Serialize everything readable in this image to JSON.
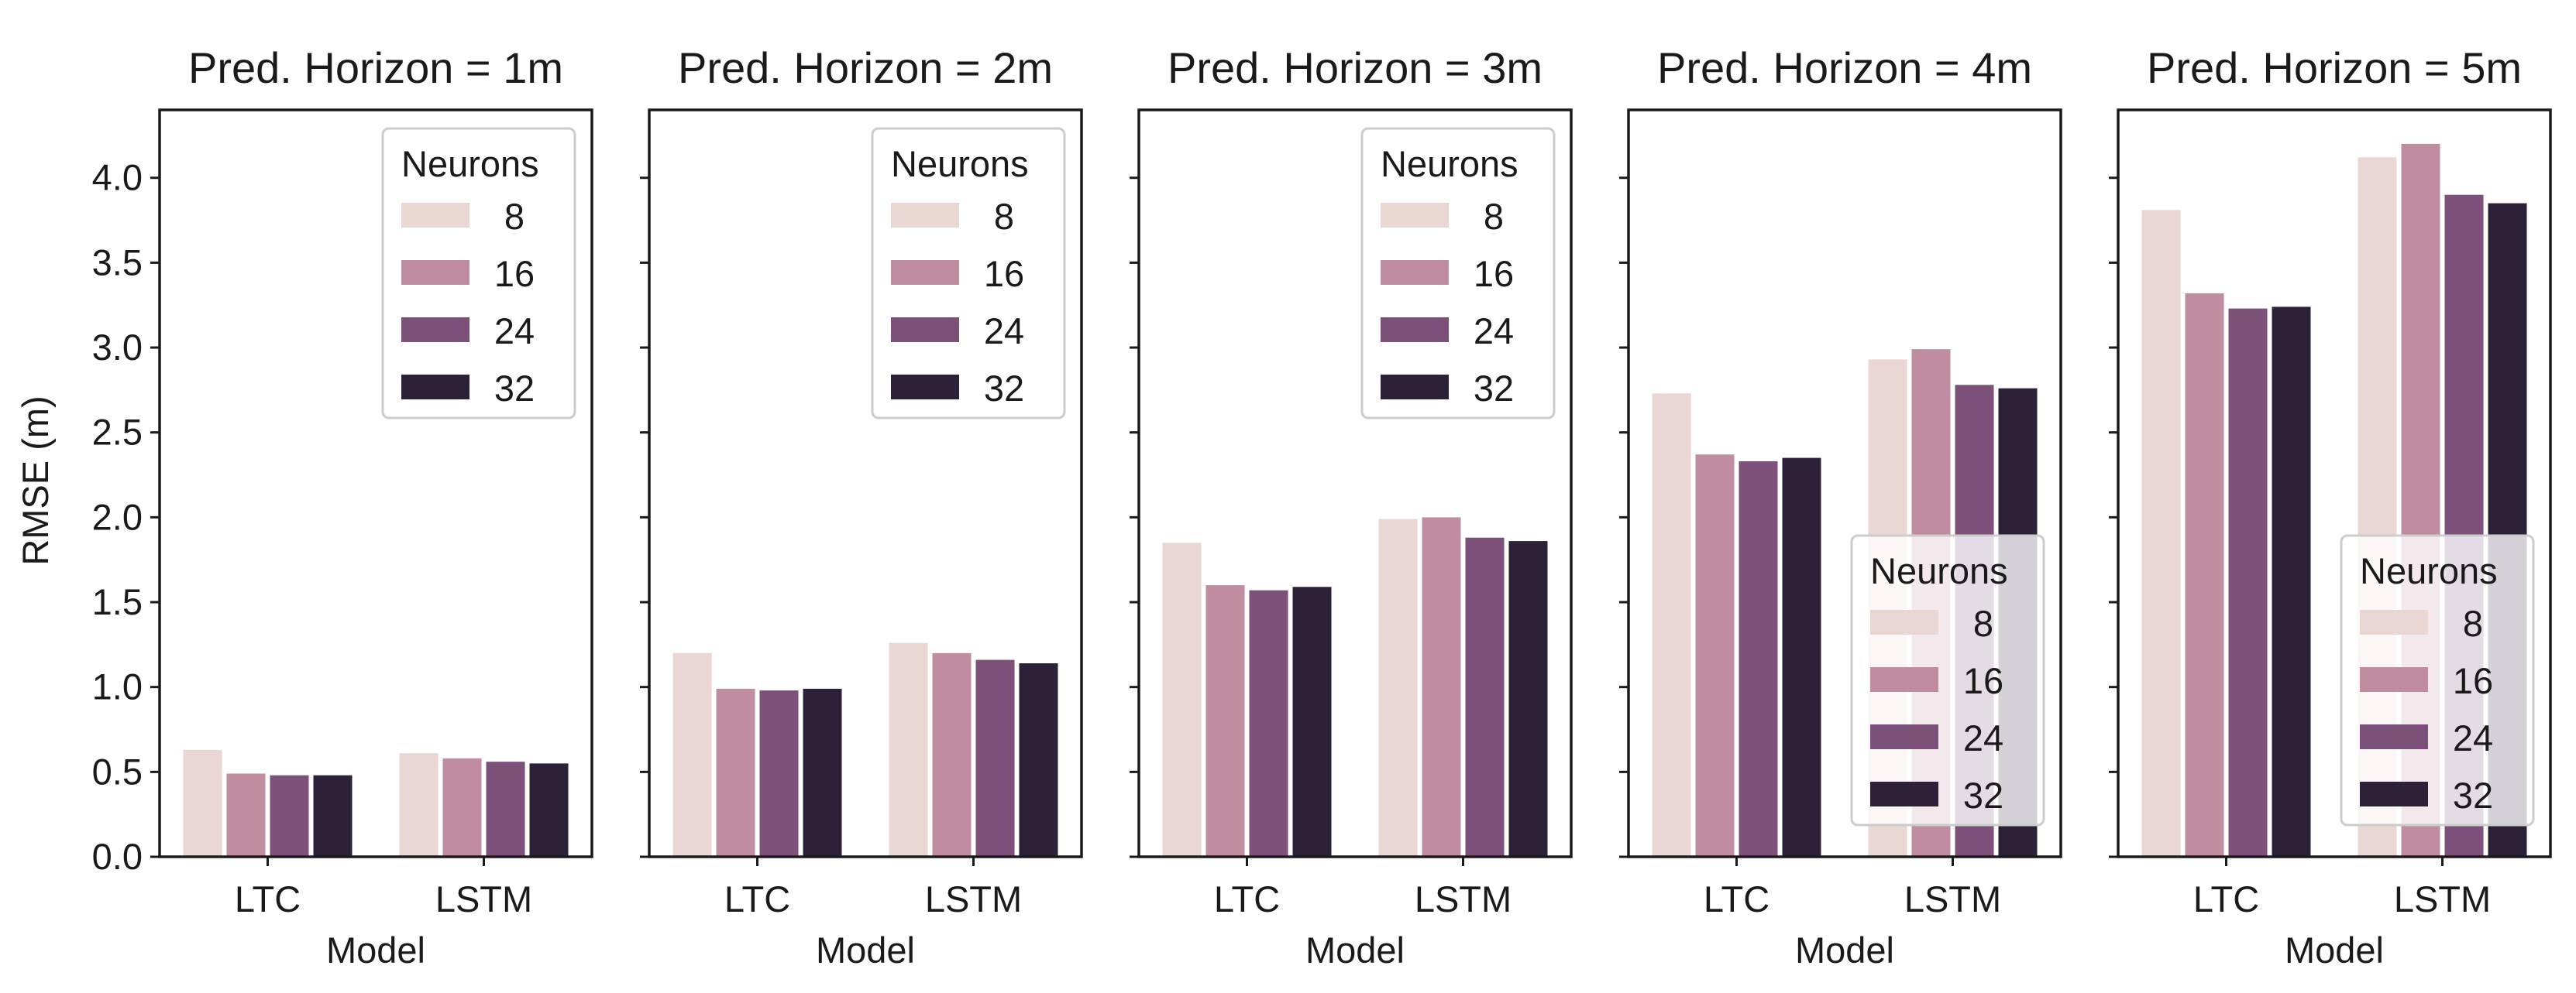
{
  "figure": {
    "y_axis_label": "RMSE (m)",
    "x_axis_label": "Model",
    "legend_title": "Neurons"
  },
  "palette": {
    "8": "#ead6d3",
    "16": "#c08ca0",
    "24": "#7b5079",
    "32": "#2d2039"
  },
  "chart_data": [
    {
      "type": "bar",
      "title": "Pred. Horizon = 1m",
      "xlabel": "Model",
      "ylabel": "RMSE (m)",
      "ylim": [
        0,
        4.4
      ],
      "yticks": [
        "0.0",
        "0.5",
        "1.0",
        "1.5",
        "2.0",
        "2.5",
        "3.0",
        "3.5",
        "4.0"
      ],
      "categories": [
        "LTC",
        "LSTM"
      ],
      "legend": {
        "title": "Neurons",
        "position": "top-right"
      },
      "series": [
        {
          "name": "8",
          "values": [
            0.63,
            0.61
          ]
        },
        {
          "name": "16",
          "values": [
            0.49,
            0.58
          ]
        },
        {
          "name": "24",
          "values": [
            0.48,
            0.56
          ]
        },
        {
          "name": "32",
          "values": [
            0.48,
            0.55
          ]
        }
      ]
    },
    {
      "type": "bar",
      "title": "Pred. Horizon = 2m",
      "xlabel": "Model",
      "ylabel": "",
      "ylim": [
        0,
        4.4
      ],
      "categories": [
        "LTC",
        "LSTM"
      ],
      "legend": {
        "title": "Neurons",
        "position": "top-right"
      },
      "series": [
        {
          "name": "8",
          "values": [
            1.2,
            1.26
          ]
        },
        {
          "name": "16",
          "values": [
            0.99,
            1.2
          ]
        },
        {
          "name": "24",
          "values": [
            0.98,
            1.16
          ]
        },
        {
          "name": "32",
          "values": [
            0.99,
            1.14
          ]
        }
      ]
    },
    {
      "type": "bar",
      "title": "Pred. Horizon = 3m",
      "xlabel": "Model",
      "ylabel": "",
      "ylim": [
        0,
        4.4
      ],
      "categories": [
        "LTC",
        "LSTM"
      ],
      "legend": {
        "title": "Neurons",
        "position": "top-right"
      },
      "series": [
        {
          "name": "8",
          "values": [
            1.85,
            1.99
          ]
        },
        {
          "name": "16",
          "values": [
            1.6,
            2.0
          ]
        },
        {
          "name": "24",
          "values": [
            1.57,
            1.88
          ]
        },
        {
          "name": "32",
          "values": [
            1.59,
            1.86
          ]
        }
      ]
    },
    {
      "type": "bar",
      "title": "Pred. Horizon = 4m",
      "xlabel": "Model",
      "ylabel": "",
      "ylim": [
        0,
        4.4
      ],
      "categories": [
        "LTC",
        "LSTM"
      ],
      "legend": {
        "title": "Neurons",
        "position": "bottom-right"
      },
      "series": [
        {
          "name": "8",
          "values": [
            2.73,
            2.93
          ]
        },
        {
          "name": "16",
          "values": [
            2.37,
            2.99
          ]
        },
        {
          "name": "24",
          "values": [
            2.33,
            2.78
          ]
        },
        {
          "name": "32",
          "values": [
            2.35,
            2.76
          ]
        }
      ]
    },
    {
      "type": "bar",
      "title": "Pred. Horizon = 5m",
      "xlabel": "Model",
      "ylabel": "",
      "ylim": [
        0,
        4.4
      ],
      "categories": [
        "LTC",
        "LSTM"
      ],
      "legend": {
        "title": "Neurons",
        "position": "bottom-right"
      },
      "series": [
        {
          "name": "8",
          "values": [
            3.81,
            4.12
          ]
        },
        {
          "name": "16",
          "values": [
            3.32,
            4.2
          ]
        },
        {
          "name": "24",
          "values": [
            3.23,
            3.9
          ]
        },
        {
          "name": "32",
          "values": [
            3.24,
            3.85
          ]
        }
      ]
    }
  ]
}
